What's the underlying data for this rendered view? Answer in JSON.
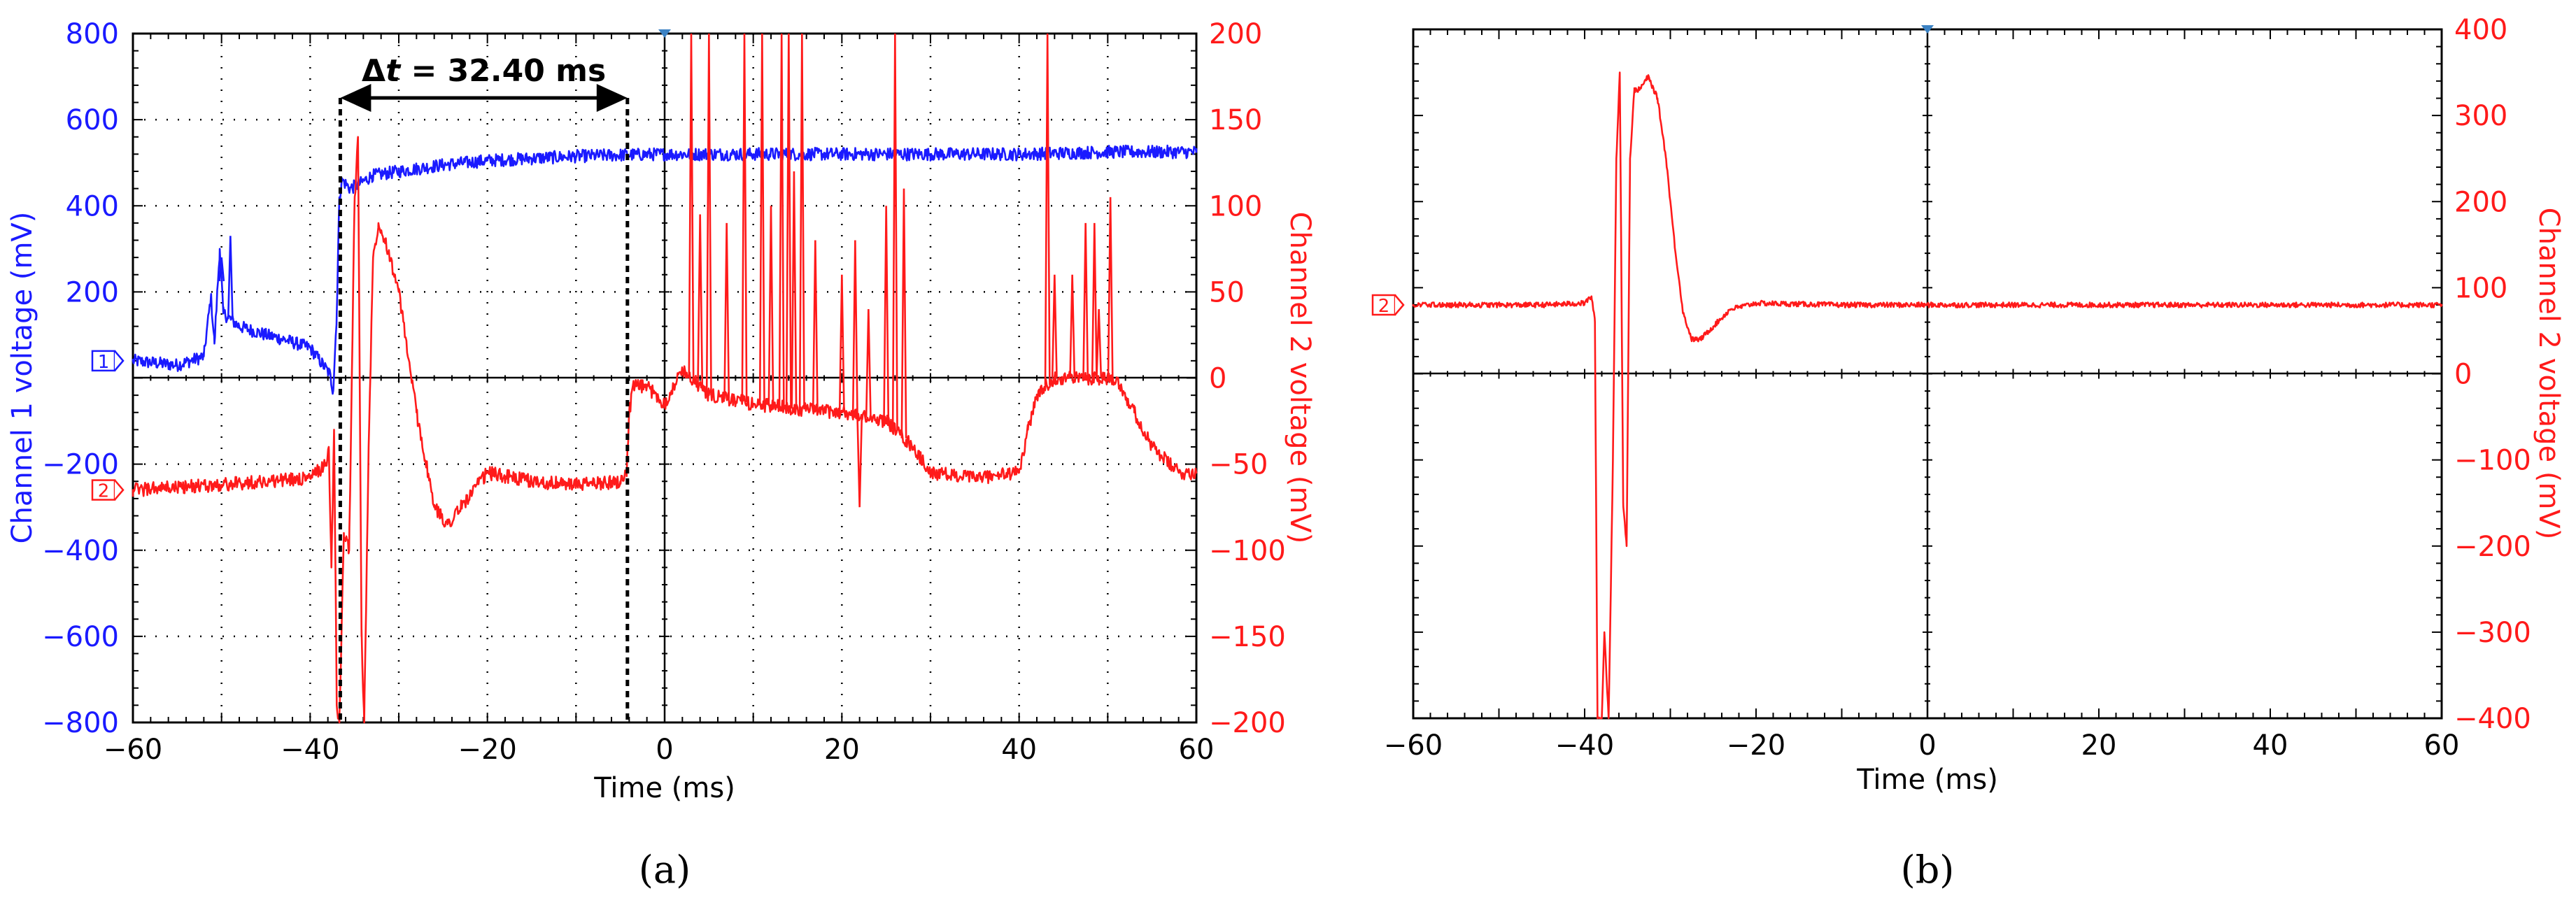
{
  "colors": {
    "channel1": "#1a1aff",
    "channel2": "#ff1a1a",
    "grid": "#000000",
    "marker_fill": "#ffffff"
  },
  "chart_data": [
    {
      "panel": "(a)",
      "type": "line",
      "xlabel": "Time (ms)",
      "ylabel_left": "Channel 1 voltage (mV)",
      "ylabel_right": "Channel 2 voltage (mV)",
      "xlim": [
        -60,
        60
      ],
      "ylim_left": [
        -800,
        800
      ],
      "ylim_right": [
        -200,
        200
      ],
      "x_ticks": [
        "−60",
        "−40",
        "−20",
        "0",
        "20",
        "40",
        "60"
      ],
      "y_left_ticks": [
        "800",
        "600",
        "400",
        "200",
        "−200",
        "−400",
        "−600",
        "−800"
      ],
      "y_right_ticks": [
        "200",
        "150",
        "100",
        "50",
        "0",
        "−50",
        "−100",
        "−150",
        "−200"
      ],
      "grid": "dotted",
      "channel_markers": [
        "1",
        "2"
      ],
      "annotation": {
        "text_prefix": "Δ",
        "text_var": "t",
        "text_value": " = 32.40 ms",
        "x_start": -36.6,
        "x_end": -4.2
      },
      "series": [
        {
          "axis": "left",
          "keypoints": [
            [
              -60,
              40
            ],
            [
              -55,
              30
            ],
            [
              -52,
              50
            ],
            [
              -51.2,
              190
            ],
            [
              -50.8,
              80
            ],
            [
              -50.2,
              300
            ],
            [
              -49.8,
              150
            ],
            [
              -48,
              120
            ],
            [
              -45,
              100
            ],
            [
              -43,
              90
            ],
            [
              -40,
              70
            ],
            [
              -37.8,
              10
            ],
            [
              -37.4,
              -30
            ],
            [
              -37,
              150
            ],
            [
              -36.7,
              420
            ],
            [
              -36.4,
              460
            ],
            [
              -35.5,
              440
            ],
            [
              -34.5,
              450
            ],
            [
              -33,
              470
            ],
            [
              -30,
              480
            ],
            [
              -25,
              495
            ],
            [
              -20,
              505
            ],
            [
              -15,
              510
            ],
            [
              -10,
              515
            ],
            [
              -5,
              518
            ],
            [
              0,
              520
            ],
            [
              10,
              520
            ],
            [
              20,
              520
            ],
            [
              30,
              520
            ],
            [
              40,
              520
            ],
            [
              50,
              525
            ],
            [
              60,
              525
            ]
          ],
          "noise": 15,
          "spikes": [
            [
              -49,
              330
            ],
            [
              -50,
              280
            ]
          ]
        },
        {
          "axis": "right",
          "keypoints": [
            [
              -60,
              -65
            ],
            [
              -50,
              -62
            ],
            [
              -40,
              -58
            ],
            [
              -38.2,
              -50
            ],
            [
              -37.9,
              -40
            ],
            [
              -37.6,
              -110
            ],
            [
              -37.3,
              -30
            ],
            [
              -37.0,
              -190
            ],
            [
              -36.7,
              -200
            ],
            [
              -36.2,
              -90
            ],
            [
              -35.6,
              -100
            ],
            [
              -35.0,
              100
            ],
            [
              -34.6,
              140
            ],
            [
              -34.2,
              -150
            ],
            [
              -33.9,
              -200
            ],
            [
              -33.4,
              -40
            ],
            [
              -32.9,
              70
            ],
            [
              -32.3,
              90
            ],
            [
              -31.5,
              80
            ],
            [
              -30,
              50
            ],
            [
              -28,
              -20
            ],
            [
              -26,
              -75
            ],
            [
              -24.5,
              -85
            ],
            [
              -23,
              -75
            ],
            [
              -20,
              -55
            ],
            [
              -15,
              -60
            ],
            [
              -10,
              -62
            ],
            [
              -5,
              -60
            ],
            [
              -4.3,
              -55
            ],
            [
              -4.0,
              -20
            ],
            [
              -3.5,
              -5
            ],
            [
              -2,
              -5
            ],
            [
              0,
              -15
            ],
            [
              2,
              5
            ],
            [
              5,
              -10
            ],
            [
              10,
              -15
            ],
            [
              15,
              -18
            ],
            [
              20,
              -20
            ],
            [
              25,
              -25
            ],
            [
              28,
              -40
            ],
            [
              30,
              -55
            ],
            [
              35,
              -58
            ],
            [
              40,
              -55
            ],
            [
              41,
              -30
            ],
            [
              42,
              -10
            ],
            [
              44,
              0
            ],
            [
              48,
              0
            ],
            [
              51,
              0
            ],
            [
              53,
              -20
            ],
            [
              55,
              -40
            ],
            [
              58,
              -55
            ],
            [
              60,
              -55
            ]
          ],
          "noise": 4,
          "spikes": [
            [
              3,
              200
            ],
            [
              4,
              95
            ],
            [
              5,
              200
            ],
            [
              7,
              90
            ],
            [
              9,
              200
            ],
            [
              11,
              200
            ],
            [
              12,
              100
            ],
            [
              13.2,
              200
            ],
            [
              14,
              200
            ],
            [
              14.6,
              120
            ],
            [
              15.5,
              200
            ],
            [
              17,
              80
            ],
            [
              20,
              60
            ],
            [
              21.5,
              80
            ],
            [
              22,
              -75
            ],
            [
              23,
              40
            ],
            [
              25,
              100
            ],
            [
              26,
              200
            ],
            [
              27,
              110
            ],
            [
              43.2,
              200
            ],
            [
              44,
              60
            ],
            [
              46,
              60
            ],
            [
              47.5,
              90
            ],
            [
              48.5,
              90
            ],
            [
              49,
              40
            ],
            [
              50.3,
              105
            ]
          ]
        }
      ]
    },
    {
      "panel": "(b)",
      "type": "line",
      "xlabel": "Time (ms)",
      "ylabel_right": "Channel 2 voltage (mV)",
      "xlim": [
        -60,
        60
      ],
      "ylim_right": [
        -400,
        400
      ],
      "x_ticks": [
        "−60",
        "−40",
        "−20",
        "0",
        "20",
        "40",
        "60"
      ],
      "y_right_ticks": [
        "400",
        "300",
        "200",
        "100",
        "0",
        "−100",
        "−200",
        "−300",
        "−400"
      ],
      "grid": "none",
      "channel_markers": [
        "2"
      ],
      "series": [
        {
          "axis": "right",
          "keypoints": [
            [
              -60,
              80
            ],
            [
              -45,
              80
            ],
            [
              -40,
              82
            ],
            [
              -39.2,
              90
            ],
            [
              -38.8,
              60
            ],
            [
              -38.5,
              -400
            ],
            [
              -38.0,
              -400
            ],
            [
              -37.7,
              -300
            ],
            [
              -37.2,
              -400
            ],
            [
              -36.7,
              -100
            ],
            [
              -36.3,
              250
            ],
            [
              -35.9,
              350
            ],
            [
              -35.5,
              -150
            ],
            [
              -35.1,
              -200
            ],
            [
              -34.7,
              250
            ],
            [
              -34.2,
              330
            ],
            [
              -33.6,
              330
            ],
            [
              -32.6,
              345
            ],
            [
              -31.5,
              320
            ],
            [
              -30.5,
              250
            ],
            [
              -29.5,
              150
            ],
            [
              -28.5,
              70
            ],
            [
              -27.5,
              40
            ],
            [
              -26.5,
              40
            ],
            [
              -25,
              55
            ],
            [
              -23,
              75
            ],
            [
              -20,
              82
            ],
            [
              -10,
              80
            ],
            [
              0,
              80
            ],
            [
              20,
              80
            ],
            [
              40,
              80
            ],
            [
              60,
              80
            ]
          ],
          "noise": 3,
          "spikes": []
        }
      ]
    }
  ]
}
